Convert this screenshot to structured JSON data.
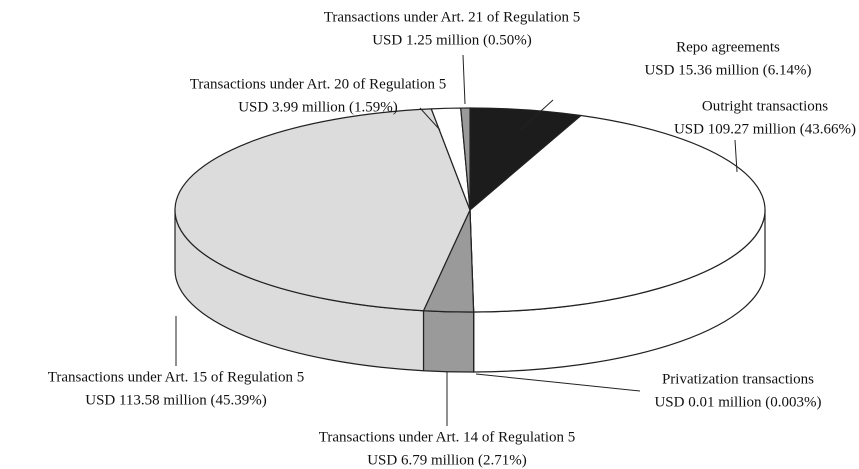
{
  "chart_data": {
    "type": "pie3d",
    "categories": [
      "Repo agreements",
      "Outright transactions",
      "Privatization transactions",
      "Transactions under Art. 14 of Regulation 5",
      "Transactions under Art. 15 of Regulation 5",
      "Transactions under Art. 20 of Regulation 5",
      "Transactions under Art. 21 of Regulation 5"
    ],
    "values": [
      15.36,
      109.27,
      0.01,
      6.79,
      113.58,
      3.99,
      1.25
    ],
    "value_labels": [
      "USD 15.36 million (6.14%)",
      "USD 109.27 million (43.66%)",
      "USD 0.01 million (0.003%)",
      "USD 6.79 million (2.71%)",
      "USD 113.58 million (45.39%)",
      "USD 3.99 million (1.59%)",
      "USD 1.25 million (0.50%)"
    ],
    "colors": [
      "#1c1c1c",
      "#ffffff",
      "#ffffff",
      "#9a9a9a",
      "#dcdcdc",
      "#ffffff",
      "#9a9a9a"
    ]
  }
}
